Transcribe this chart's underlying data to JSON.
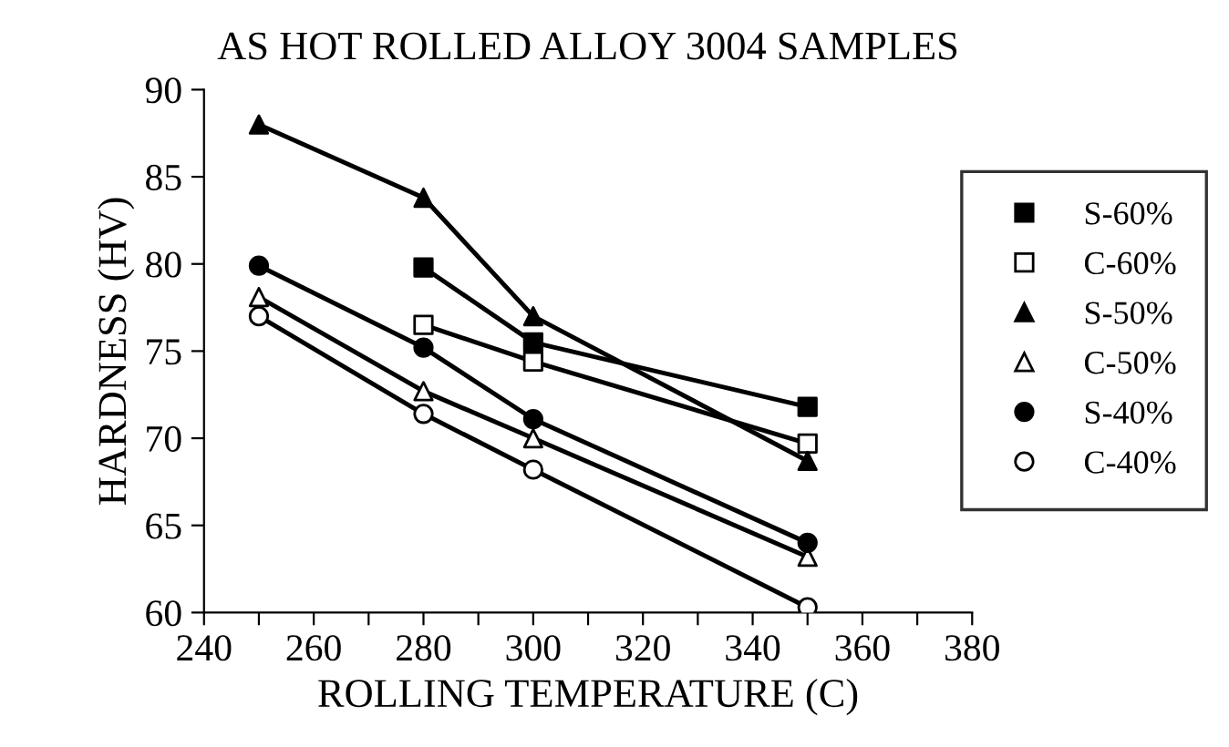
{
  "chart_data": {
    "type": "line",
    "title": "AS HOT ROLLED ALLOY 3004 SAMPLES",
    "xlabel": "ROLLING TEMPERATURE (C)",
    "ylabel": "HARDNESS (HV)",
    "x": [
      250,
      280,
      300,
      350
    ],
    "series": [
      {
        "name": "S-60%",
        "color": "#000000",
        "marker": "square",
        "values": [
          null,
          79.8,
          75.5,
          71.8
        ]
      },
      {
        "name": "C-60%",
        "color": "#000000",
        "marker": "square",
        "colors": [
          "#ffffff",
          "#ffffff",
          "#ffffff",
          "#ffffff"
        ],
        "values": [
          null,
          76.5,
          74.4,
          69.7
        ]
      },
      {
        "name": "S-50%",
        "color": "#000000",
        "marker": "triangle",
        "values": [
          88.0,
          83.8,
          77.0,
          68.7
        ]
      },
      {
        "name": "C-50%",
        "color": "#000000",
        "marker": "triangle",
        "colors": [
          "#ffffff",
          "#ffffff",
          "#ffffff",
          "#ffffff"
        ],
        "values": [
          78.1,
          72.7,
          70.0,
          63.2
        ]
      },
      {
        "name": "S-40%",
        "color": "#000000",
        "marker": "circle",
        "values": [
          79.9,
          75.2,
          71.1,
          64.0
        ]
      },
      {
        "name": "C-40%",
        "color": "#000000",
        "marker": "circle",
        "colors": [
          "#ffffff",
          "#ffffff",
          "#ffffff",
          "#ffffff"
        ],
        "values": [
          77.0,
          71.4,
          68.2,
          60.3
        ]
      }
    ],
    "xlim": [
      240,
      380
    ],
    "ylim": [
      60,
      90
    ],
    "xticks": [
      240,
      {
        "value": 250,
        "label": null
      },
      260,
      {
        "value": 270,
        "label": null
      },
      280,
      {
        "value": 290,
        "label": null
      },
      300,
      {
        "value": 310,
        "label": null
      },
      320,
      {
        "value": 330,
        "label": null
      },
      340,
      {
        "value": 350,
        "label": null
      },
      360,
      {
        "value": 370,
        "label": null
      },
      380
    ],
    "yticks": [
      60,
      65,
      70,
      75,
      80,
      85,
      90
    ],
    "grid": false,
    "legend": "right",
    "line_style": "solid"
  }
}
